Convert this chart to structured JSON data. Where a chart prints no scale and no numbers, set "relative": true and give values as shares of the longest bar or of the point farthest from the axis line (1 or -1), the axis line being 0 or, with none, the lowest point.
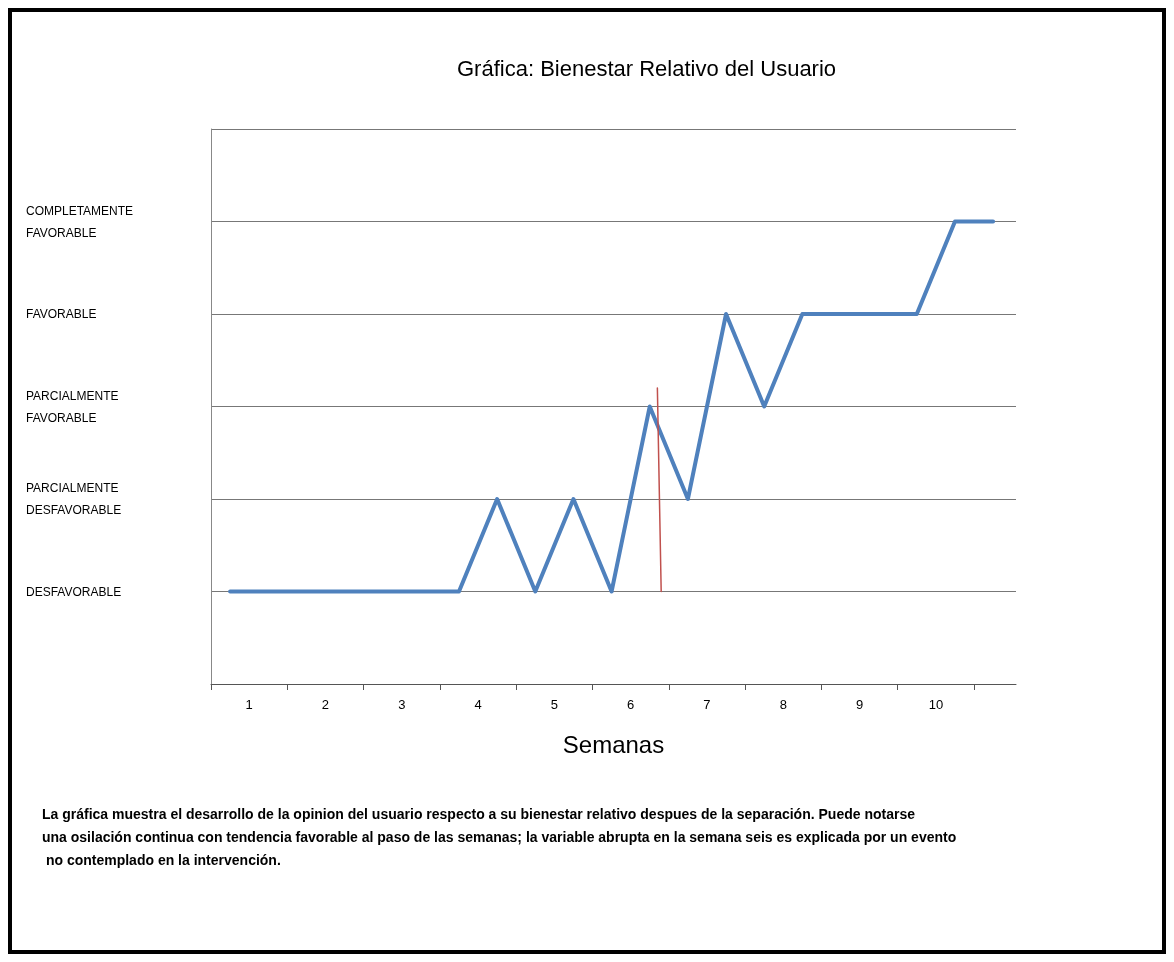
{
  "chart_data": {
    "type": "line",
    "title": "Gráfica: Bienestar Relativo del Usuario",
    "xlabel": "Semanas",
    "relative": true,
    "annotations": [
      "DESFAVORABLE",
      "PARCIALMENTE DESFAVORABLE",
      "PARCIALMENTE FAVORABLE",
      "FAVORABLE",
      "COMPLETAMENTE FAVORABLE",
      "La gráfica muestra el desarrollo de la opinion del usuario respecto a su bienestar relativo despues de la separación. Puede notarse una osilación continua con tendencia favorable al paso de las semanas; la variable abrupta en la semana seis es explicada por un evento no contemplado en la intervención."
    ],
    "series": [
      {
        "color": "#4f81bd",
        "x": [
          0.75,
          3.75,
          4.25,
          4.75,
          5.25,
          5.75,
          6.25,
          6.75,
          7.25,
          7.75,
          8.25,
          9.75,
          10.25,
          10.75
        ],
        "values": [
          0.2,
          0.2,
          0.4,
          0.2,
          0.4,
          0.2,
          0.6,
          0.4,
          0.8,
          0.6,
          0.8,
          0.8,
          1,
          1
        ]
      },
      {
        "color": "#c0504d",
        "x": [
          6.35,
          6.4
        ],
        "values": [
          0.64,
          0.2
        ]
      }
    ],
    "xlim": [
      0.5,
      11.05
    ],
    "xticks": [
      {
        "value": 0.5,
        "label": null
      },
      {
        "value": 1,
        "label": "1"
      },
      {
        "value": 1.5,
        "label": null
      },
      {
        "value": 2,
        "label": "2"
      },
      {
        "value": 2.5,
        "label": null
      },
      {
        "value": 3,
        "label": "3"
      },
      {
        "value": 3.5,
        "label": null
      },
      {
        "value": 4,
        "label": "4"
      },
      {
        "value": 4.5,
        "label": null
      },
      {
        "value": 5,
        "label": "5"
      },
      {
        "value": 5.5,
        "label": null
      },
      {
        "value": 6,
        "label": "6"
      },
      {
        "value": 6.5,
        "label": null
      },
      {
        "value": 7,
        "label": "7"
      },
      {
        "value": 7.5,
        "label": null
      },
      {
        "value": 8,
        "label": "8"
      },
      {
        "value": 8.5,
        "label": null
      },
      {
        "value": 9,
        "label": "9"
      },
      {
        "value": 9.5,
        "label": null
      },
      {
        "value": 10,
        "label": "10"
      },
      {
        "value": 10.5,
        "label": null
      }
    ],
    "grid": "y",
    "marker": "none",
    "line_style": "solid"
  }
}
